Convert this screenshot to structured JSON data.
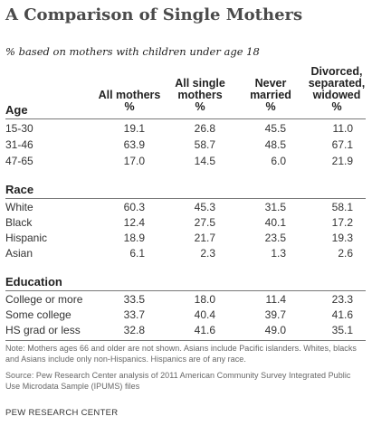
{
  "title": "A Comparison of Single Mothers",
  "subtitle": "% based on mothers with children under age 18",
  "columns": [
    {
      "header": "All mothers",
      "unit": "%"
    },
    {
      "header": "All single mothers",
      "unit": "%"
    },
    {
      "header": "Never married",
      "unit": "%"
    },
    {
      "header": "Divorced, separated, widowed",
      "unit": "%"
    }
  ],
  "header_lines": {
    "col1": [
      "All mothers"
    ],
    "col2": [
      "All single",
      "mothers"
    ],
    "col3": [
      "Never",
      "married"
    ],
    "col4": [
      "Divorced,",
      "separated,",
      "widowed"
    ]
  },
  "sections": [
    {
      "name": "Age",
      "rows": [
        {
          "label": "15-30",
          "values": [
            "19.1",
            "26.8",
            "45.5",
            "11.0"
          ]
        },
        {
          "label": "31-46",
          "values": [
            "63.9",
            "58.7",
            "48.5",
            "67.1"
          ]
        },
        {
          "label": "47-65",
          "values": [
            "17.0",
            "14.5",
            "6.0",
            "21.9"
          ]
        }
      ]
    },
    {
      "name": "Race",
      "rows": [
        {
          "label": "White",
          "values": [
            "60.3",
            "45.3",
            "31.5",
            "58.1"
          ]
        },
        {
          "label": "Black",
          "values": [
            "12.4",
            "27.5",
            "40.1",
            "17.2"
          ]
        },
        {
          "label": "Hispanic",
          "values": [
            "18.9",
            "21.7",
            "23.5",
            "19.3"
          ]
        },
        {
          "label": "Asian",
          "values": [
            "6.1",
            "2.3",
            "1.3",
            "2.6"
          ]
        }
      ]
    },
    {
      "name": "Education",
      "rows": [
        {
          "label": "College or more",
          "values": [
            "33.5",
            "18.0",
            "11.4",
            "23.3"
          ]
        },
        {
          "label": "Some college",
          "values": [
            "33.7",
            "40.4",
            "39.7",
            "41.6"
          ]
        },
        {
          "label": "HS grad or less",
          "values": [
            "32.8",
            "41.6",
            "49.0",
            "35.1"
          ]
        }
      ]
    }
  ],
  "note": "Note: Mothers ages 66 and older are not shown.  Asians include Pacific islanders. Whites, blacks and Asians include only non-Hispanics. Hispanics are of any race.",
  "source": "Source: Pew Research Center analysis of 2011 American Community Survey Integrated Public Use Microdata Sample (IPUMS) files",
  "organization": "PEW RESEARCH CENTER",
  "colors": {
    "title": "#4a4a4a",
    "rule": "#777777",
    "footnote": "#666666"
  }
}
